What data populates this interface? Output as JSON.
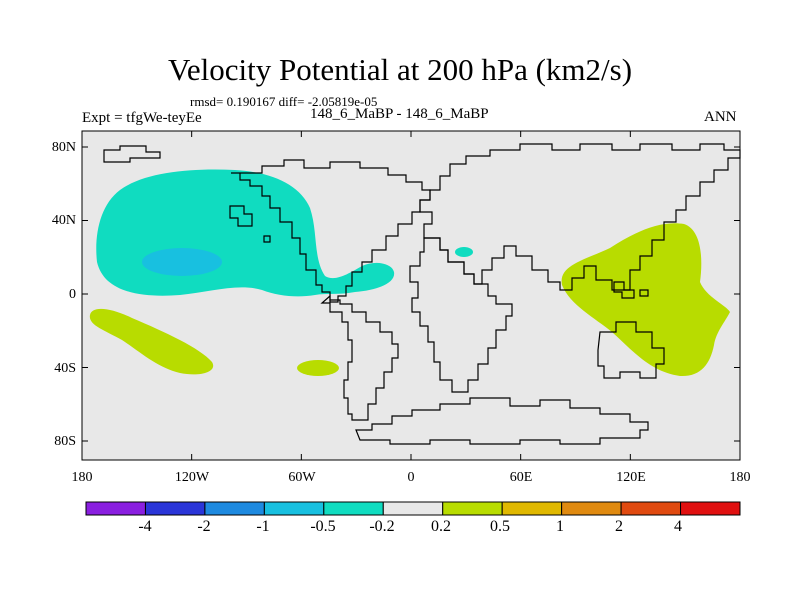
{
  "title": "Velocity Potential at 200 hPa (km2/s)",
  "stats": "rmsd= 0.190167  diff= -2.05819e-05",
  "experiment": "Expt = tfgWe-teyEe",
  "run_label": "148_6_MaBP - 148_6_MaBP",
  "season": "ANN",
  "lat_ticks": [
    "80N",
    "40N",
    "0",
    "40S",
    "80S"
  ],
  "lon_ticks": [
    "180",
    "120W",
    "60W",
    "0",
    "60E",
    "120E",
    "180"
  ],
  "colorbar": {
    "labels": [
      "-4",
      "-2",
      "-1",
      "-0.5",
      "-0.2",
      "0.2",
      "0.5",
      "1",
      "2",
      "4"
    ],
    "colors": [
      "#8a1fe0",
      "#2a35d8",
      "#1e8ae0",
      "#18c0e0",
      "#10dcc0",
      "#e8e8e8",
      "#b8dc00",
      "#e0b800",
      "#e08a10",
      "#e04a10",
      "#e01010"
    ]
  },
  "map_colors": {
    "background": "#e8e8e8",
    "negative_0_2_to_0_5": "#10dcc0",
    "negative_0_5_to_1": "#18c0e0",
    "positive_0_2_to_0_5": "#b8dc00"
  }
}
